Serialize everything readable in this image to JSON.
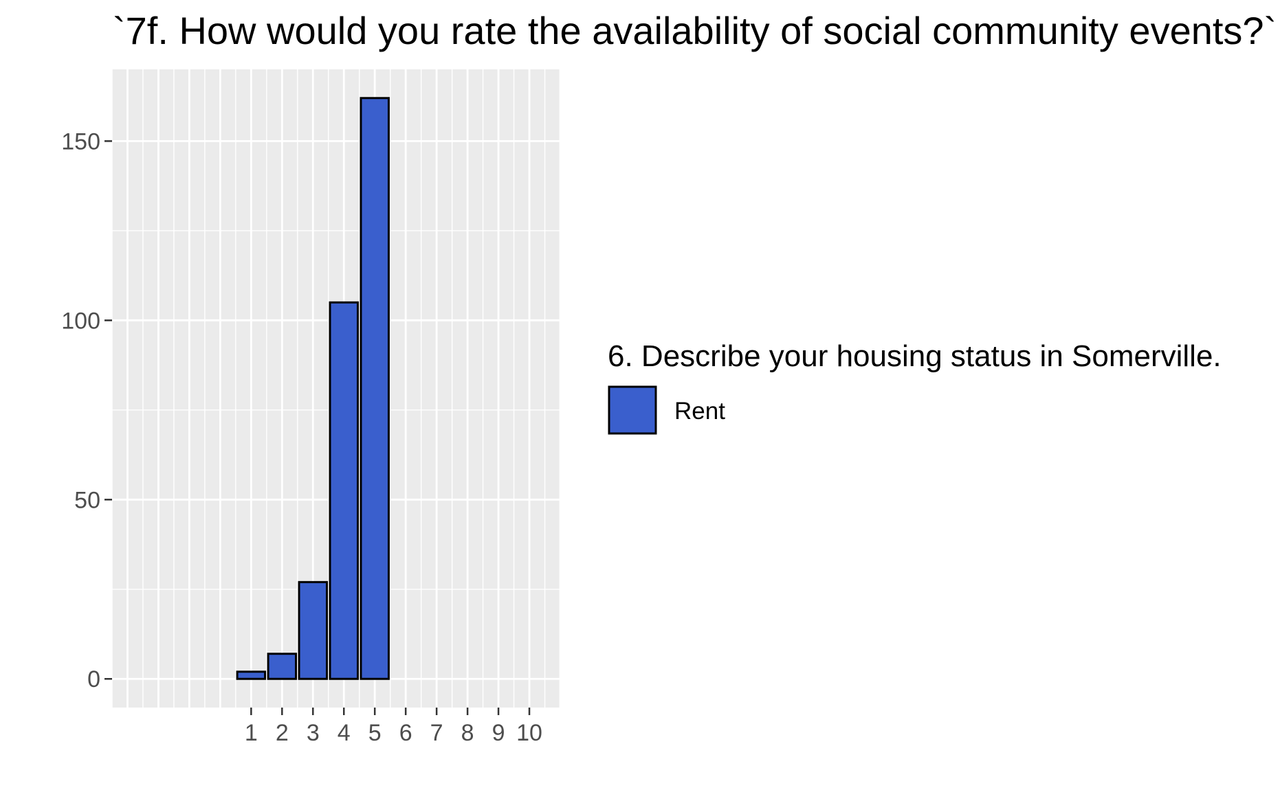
{
  "chart_data": {
    "type": "bar",
    "title": "`7f. How would you rate the availability of social community events?`",
    "xlabel": "",
    "ylabel": "",
    "categories": [
      "1",
      "2",
      "3",
      "4",
      "5"
    ],
    "x_ticks": [
      "1",
      "2",
      "3",
      "4",
      "5",
      "6",
      "7",
      "8",
      "9",
      "10"
    ],
    "x_values": [
      1,
      2,
      3,
      4,
      5
    ],
    "series": [
      {
        "name": "Rent",
        "values": [
          2,
          7,
          27,
          105,
          162
        ],
        "color": "#3a5fcd"
      }
    ],
    "xlim": [
      -3.5,
      11
    ],
    "ylim": [
      -8,
      170
    ],
    "y_ticks": [
      0,
      50,
      100,
      150
    ],
    "y_tick_labels": [
      "0",
      "50",
      "100",
      "150"
    ],
    "grid": true,
    "legend": {
      "title": "6. Describe your housing status in Somerville.",
      "position": "right",
      "entries": [
        {
          "label": "Rent",
          "color": "#3a5fcd"
        }
      ]
    }
  }
}
